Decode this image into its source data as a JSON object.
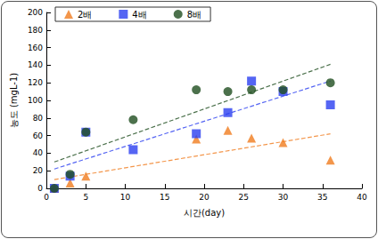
{
  "chart_data": {
    "type": "scatter",
    "x_label": "시간(day)",
    "y_label": "농도 (mgL-1)",
    "xlim": [
      0,
      40
    ],
    "xticks": [
      0,
      5,
      10,
      15,
      20,
      25,
      30,
      35,
      40
    ],
    "ylim": [
      0,
      200
    ],
    "yticks": [
      0,
      20,
      40,
      60,
      80,
      100,
      120,
      140,
      160,
      180,
      200
    ],
    "grid": false,
    "legend": "upper left",
    "series": [
      {
        "name": "2배",
        "color": "#f07c1e",
        "marker": "triangle",
        "line_style": "dashed",
        "x": [
          1,
          3,
          5,
          19,
          23,
          26,
          30,
          36
        ],
        "values": [
          0,
          6,
          14,
          56,
          66,
          57,
          52,
          32
        ],
        "trend": {
          "x": [
            1,
            36
          ],
          "values": [
            10,
            62
          ]
        }
      },
      {
        "name": "4배",
        "color": "#2b3ff0",
        "marker": "square",
        "line_style": "dashed",
        "x": [
          1,
          3,
          5,
          11,
          19,
          23,
          26,
          30,
          36
        ],
        "values": [
          0,
          14,
          64,
          44,
          62,
          86,
          122,
          110,
          95
        ],
        "trend": {
          "x": [
            1,
            36
          ],
          "values": [
            22,
            122
          ]
        }
      },
      {
        "name": "8배",
        "color": "#1f4d1f",
        "marker": "circle",
        "line_style": "dashed",
        "x": [
          1,
          3,
          5,
          11,
          19,
          23,
          26,
          30,
          36
        ],
        "values": [
          0,
          16,
          64,
          78,
          112,
          110,
          112,
          112,
          120
        ],
        "trend": {
          "x": [
            1,
            36
          ],
          "values": [
            30,
            141
          ]
        }
      }
    ]
  }
}
